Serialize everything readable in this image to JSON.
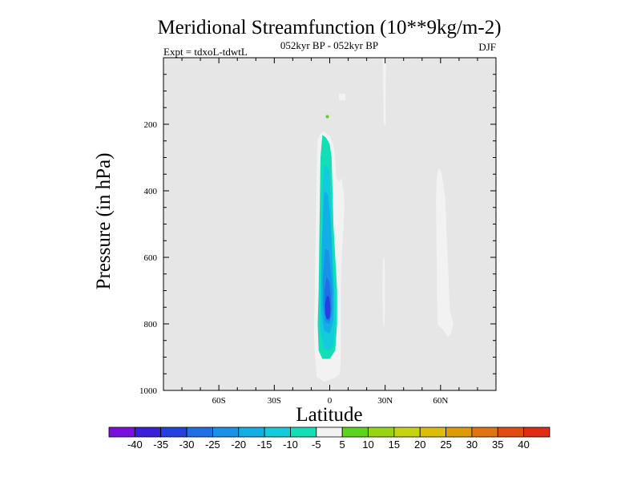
{
  "chart_data": {
    "type": "contour",
    "title": "Meridional Streamfunction (10**9kg/m-2)",
    "subtitle_center": "052kyr BP - 052kyr BP",
    "subtitle_left": "Expt = tdxoL-tdwtL",
    "subtitle_right": "DJF",
    "xlabel": "Latitude",
    "ylabel": "Pressure (in hPa)",
    "xlim": [
      -90,
      90
    ],
    "ylim": [
      1000,
      0
    ],
    "x_ticks": [
      -60,
      -30,
      0,
      30,
      60
    ],
    "x_tick_labels": [
      "60S",
      "30S",
      "0",
      "30N",
      "60N"
    ],
    "y_ticks": [
      200,
      400,
      600,
      800,
      1000
    ],
    "y_tick_labels": [
      "200",
      "400",
      "600",
      "800",
      "1000"
    ],
    "background_color": "#e6e6e6",
    "colorbar": {
      "levels": [
        -40,
        -35,
        -30,
        -25,
        -20,
        -15,
        -10,
        -5,
        5,
        10,
        15,
        20,
        25,
        30,
        35,
        40
      ],
      "labels": [
        "-40",
        "-35",
        "-30",
        "-25",
        "-20",
        "-15",
        "-10",
        "-5",
        "5",
        "10",
        "15",
        "20",
        "25",
        "30",
        "35",
        "40"
      ],
      "colors": [
        "#7a10e0",
        "#3a1ed8",
        "#2340e0",
        "#1f6fe6",
        "#1891e8",
        "#12aee6",
        "#13cbdc",
        "#12dfb6",
        "#f2f2f2",
        "#5ad41c",
        "#98d414",
        "#c6d410",
        "#dcbe08",
        "#e09a08",
        "#e27410",
        "#e24c10",
        "#e02c10"
      ]
    },
    "features": [
      {
        "name": "SH tropical cell",
        "sign": "negative",
        "lat_range": [
          -8,
          5
        ],
        "p_range": [
          225,
          975
        ],
        "min_value": -35,
        "center_lat": -2,
        "center_p": 760
      },
      {
        "name": "equatorial band",
        "sign": "negative",
        "lat_range": [
          1,
          8
        ],
        "p_range": [
          360,
          970
        ],
        "min_value": -10
      },
      {
        "name": "30N column",
        "sign": "negative",
        "lat_range": [
          29,
          31
        ],
        "p_range": [
          0,
          200
        ],
        "min_value": -10
      },
      {
        "name": "30N lower column",
        "sign": "negative",
        "lat_range": [
          29,
          30
        ],
        "p_range": [
          600,
          810
        ],
        "min_value": -10
      },
      {
        "name": "60N cell",
        "sign": "negative",
        "lat_range": [
          57,
          67
        ],
        "p_range": [
          330,
          830
        ],
        "min_value": -10
      },
      {
        "name": "upper blob",
        "sign": "negative",
        "lat_range": [
          5,
          8
        ],
        "p_range": [
          110,
          130
        ],
        "min_value": -10
      },
      {
        "name": "upper speck",
        "sign": "positive",
        "lat_range": [
          -1,
          1
        ],
        "p_range": [
          170,
          180
        ],
        "max_value": 5
      }
    ]
  }
}
